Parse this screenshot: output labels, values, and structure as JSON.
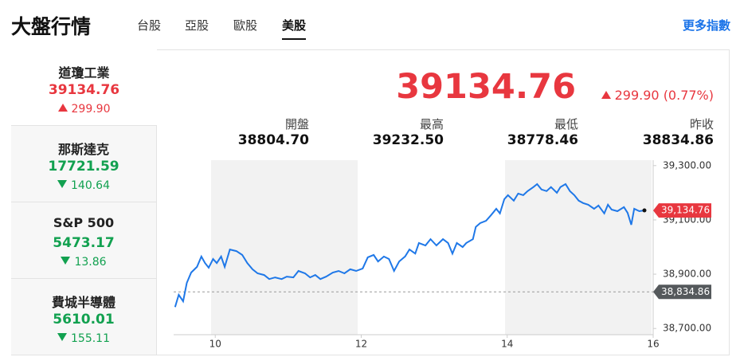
{
  "header": {
    "title": "大盤行情",
    "tabs": [
      "台股",
      "亞股",
      "歐股",
      "美股"
    ],
    "active_tab": 3,
    "more_link": "更多指數"
  },
  "indices": [
    {
      "name": "道瓊工業",
      "price": "39134.76",
      "change": "299.90",
      "trend": "up"
    },
    {
      "name": "那斯達克",
      "price": "17721.59",
      "change": "140.64",
      "trend": "down"
    },
    {
      "name": "S&P 500",
      "price": "5473.17",
      "change": "13.86",
      "trend": "down"
    },
    {
      "name": "費城半導體",
      "price": "5610.01",
      "change": "155.11",
      "trend": "down"
    }
  ],
  "quote": {
    "price": "39134.76",
    "change": "299.90",
    "change_pct": "(0.77%)",
    "trend": "up",
    "stats": [
      {
        "label": "開盤",
        "value": "38804.70"
      },
      {
        "label": "最高",
        "value": "39232.50"
      },
      {
        "label": "最低",
        "value": "38778.46"
      },
      {
        "label": "昨收",
        "value": "38834.86"
      }
    ]
  },
  "chart_data": {
    "type": "line",
    "color": "#1f78e8",
    "x": [
      9.45,
      9.5,
      9.56,
      9.61,
      9.67,
      9.75,
      9.81,
      9.86,
      9.91,
      9.97,
      10.02,
      10.08,
      10.13,
      10.2,
      10.29,
      10.37,
      10.44,
      10.51,
      10.58,
      10.67,
      10.74,
      10.82,
      10.91,
      10.98,
      11.07,
      11.14,
      11.23,
      11.3,
      11.37,
      11.44,
      11.52,
      11.61,
      11.69,
      11.77,
      11.85,
      11.93,
      12.02,
      12.09,
      12.17,
      12.23,
      12.31,
      12.38,
      12.45,
      12.52,
      12.6,
      12.66,
      12.74,
      12.79,
      12.88,
      12.95,
      13.03,
      13.12,
      13.19,
      13.25,
      13.31,
      13.39,
      13.44,
      13.53,
      13.57,
      13.63,
      13.71,
      13.78,
      13.85,
      13.9,
      13.96,
      14.01,
      14.09,
      14.15,
      14.22,
      14.28,
      14.36,
      14.41,
      14.47,
      14.54,
      14.6,
      14.68,
      14.73,
      14.8,
      14.86,
      14.92,
      14.98,
      15.04,
      15.11,
      15.19,
      15.25,
      15.33,
      15.38,
      15.43,
      15.51,
      15.6,
      15.65,
      15.7,
      15.74,
      15.81,
      15.88
    ],
    "values": [
      38779,
      38824,
      38800,
      38868,
      38906,
      38927,
      38965,
      38941,
      38924,
      38956,
      38941,
      38965,
      38927,
      38991,
      38985,
      38971,
      38941,
      38918,
      38903,
      38897,
      38882,
      38888,
      38882,
      38891,
      38888,
      38912,
      38903,
      38888,
      38897,
      38882,
      38891,
      38906,
      38912,
      38903,
      38918,
      38912,
      38921,
      38962,
      38971,
      38947,
      38965,
      38956,
      38912,
      38947,
      38965,
      38991,
      38976,
      39015,
      39006,
      39029,
      39006,
      39029,
      39015,
      38976,
      39015,
      39000,
      39015,
      39029,
      39074,
      39088,
      39097,
      39118,
      39141,
      39124,
      39176,
      39191,
      39171,
      39197,
      39191,
      39206,
      39221,
      39232,
      39212,
      39206,
      39221,
      39200,
      39221,
      39232,
      39206,
      39191,
      39171,
      39162,
      39156,
      39141,
      39153,
      39124,
      39156,
      39138,
      39132,
      39147,
      39126,
      39082,
      39141,
      39132,
      39135
    ],
    "xlim": [
      9.43,
      16
    ],
    "xticks": [
      10,
      12,
      14,
      16
    ],
    "ylim": [
      38680,
      39320
    ],
    "yticks": [
      {
        "value": 38700,
        "label": "38,700.00"
      },
      {
        "value": 38900,
        "label": "38,900.00"
      },
      {
        "value": 39100,
        "label": "39,100.00"
      },
      {
        "value": 39300,
        "label": "39,300.00"
      }
    ],
    "last": {
      "value": 39134.76,
      "label": "39,134.76",
      "color": "#e8373f"
    },
    "reference": {
      "value": 38834.86,
      "label": "38,834.86",
      "color": "#55595c"
    }
  }
}
